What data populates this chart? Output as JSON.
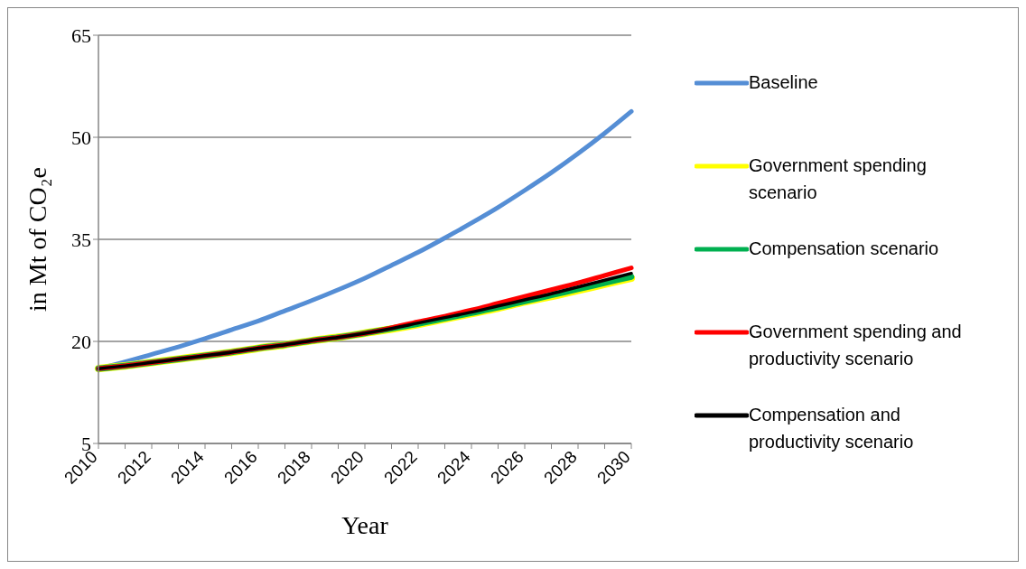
{
  "chart_data": {
    "type": "line",
    "xlabel": "Year",
    "ylabel": "in Mt of CO₂e",
    "categories": [
      "2010",
      null,
      "2012",
      null,
      "2014",
      null,
      "2016",
      null,
      "2018",
      null,
      "2020",
      null,
      "2022",
      null,
      "2024",
      null,
      "2026",
      null,
      "2028",
      null,
      "2030"
    ],
    "ylim": [
      5,
      65
    ],
    "yticks": [
      5,
      20,
      35,
      50,
      65
    ],
    "grid": "y",
    "legend": "right",
    "marker": "none",
    "line_style": "solid",
    "series": [
      {
        "name": "Baseline",
        "color": "#558ed5",
        "values": [
          16,
          17.0,
          18.1,
          19.2,
          20.4,
          21.7,
          23.0,
          24.5,
          26.0,
          27.6,
          29.3,
          31.2,
          33.1,
          35.2,
          37.4,
          39.7,
          42.2,
          44.8,
          47.6,
          50.6,
          53.8
        ]
      },
      {
        "name": "Government spending scenario",
        "color": "#ffff00",
        "values": [
          16,
          16.4,
          16.9,
          17.4,
          17.9,
          18.4,
          19.0,
          19.5,
          20.1,
          20.6,
          21.2,
          21.8,
          22.5,
          23.3,
          24.1,
          24.9,
          25.8,
          26.6,
          27.5,
          28.4,
          29.3
        ]
      },
      {
        "name": "Compensation scenario",
        "color": "#00b050",
        "values": [
          16,
          16.4,
          16.9,
          17.4,
          17.9,
          18.4,
          19.0,
          19.5,
          20.1,
          20.6,
          21.2,
          21.9,
          22.6,
          23.4,
          24.2,
          25.0,
          25.9,
          26.8,
          27.7,
          28.6,
          29.5
        ]
      },
      {
        "name": "Government spending and productivity scenario",
        "color": "#ff0000",
        "values": [
          16,
          16.4,
          16.9,
          17.4,
          17.9,
          18.4,
          19.0,
          19.5,
          20.1,
          20.6,
          21.2,
          22.0,
          22.9,
          23.7,
          24.6,
          25.6,
          26.6,
          27.6,
          28.6,
          29.7,
          30.8
        ]
      },
      {
        "name": "Compensation and productivity scenario",
        "color": "#000000",
        "values": [
          16,
          16.4,
          16.9,
          17.4,
          17.9,
          18.4,
          19.0,
          19.5,
          20.1,
          20.6,
          21.2,
          21.9,
          22.7,
          23.5,
          24.3,
          25.2,
          26.1,
          27.0,
          28.0,
          29.0,
          30.0
        ]
      }
    ]
  }
}
